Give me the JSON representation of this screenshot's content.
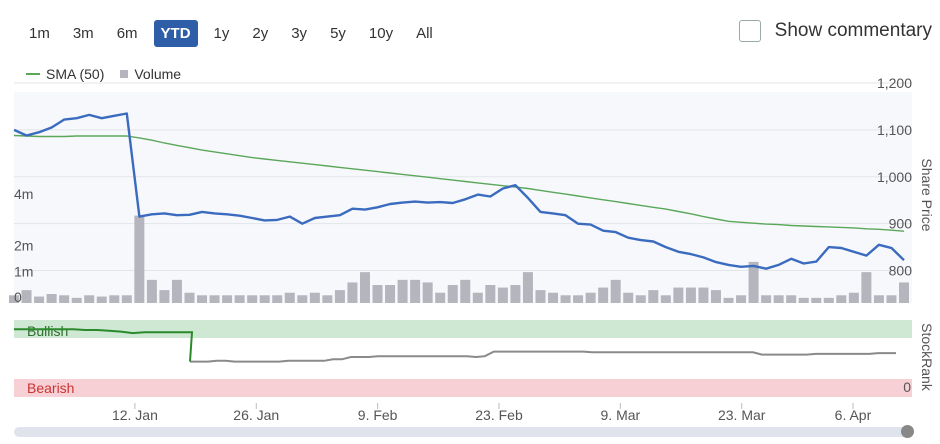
{
  "ranges": [
    "1m",
    "3m",
    "6m",
    "YTD",
    "1y",
    "2y",
    "3y",
    "5y",
    "10y",
    "All"
  ],
  "active_range": "YTD",
  "commentary": {
    "label": "Show commentary",
    "checked": false
  },
  "legend": {
    "sma": "SMA (50)",
    "volume": "Volume"
  },
  "colors": {
    "price": "#3b6bbf",
    "sma": "#5aa75a",
    "volume": "#b5b5bd",
    "active": "#2e5ea8",
    "bullish": "#2a8a2a",
    "stockrank": "#8a8a8a",
    "bullish_band": "#cfe8d4",
    "bearish_band": "#f6d0d4"
  },
  "chart_data": {
    "type": "line",
    "x_ticks": [
      "12. Jan",
      "26. Jan",
      "9. Feb",
      "23. Feb",
      "9. Mar",
      "23. Mar",
      "6. Apr"
    ],
    "y_right_ticks": [
      "1,200",
      "1,100",
      "1,000",
      "900",
      "800"
    ],
    "y_left_ticks": [
      "4m",
      "2m",
      "1m",
      "0"
    ],
    "y_right_label": "Share Price",
    "ylim_price": [
      750,
      1200
    ],
    "price": {
      "name": "Share Price",
      "values": [
        1100,
        1088,
        1095,
        1105,
        1122,
        1125,
        1132,
        1125,
        1130,
        1135,
        915,
        920,
        922,
        918,
        919,
        925,
        922,
        920,
        917,
        912,
        907,
        908,
        915,
        900,
        912,
        915,
        918,
        932,
        930,
        935,
        942,
        945,
        947,
        945,
        946,
        944,
        952,
        962,
        958,
        975,
        982,
        955,
        925,
        922,
        918,
        900,
        898,
        885,
        882,
        870,
        865,
        862,
        850,
        840,
        835,
        828,
        818,
        812,
        808,
        810,
        804,
        812,
        825,
        815,
        819,
        850,
        848,
        840,
        832,
        855,
        848,
        822
      ]
    },
    "sma": {
      "name": "SMA (50)",
      "values": [
        1088,
        1087,
        1086,
        1086,
        1086,
        1087,
        1087,
        1087,
        1087,
        1087,
        1083,
        1078,
        1072,
        1067,
        1062,
        1057,
        1053,
        1049,
        1045,
        1041,
        1038,
        1035,
        1032,
        1029,
        1026,
        1023,
        1020,
        1017,
        1014,
        1011,
        1008,
        1005,
        1002,
        999,
        996,
        993,
        990,
        987,
        984,
        981,
        978,
        975,
        971,
        967,
        963,
        959,
        955,
        951,
        947,
        943,
        939,
        935,
        931,
        926,
        921,
        915,
        910,
        905,
        903,
        901,
        899,
        898,
        896,
        895,
        894,
        893,
        892,
        891,
        889,
        888,
        886,
        884
      ]
    },
    "volume": {
      "name": "Volume",
      "values": [
        0.3,
        0.5,
        0.25,
        0.35,
        0.3,
        0.2,
        0.3,
        0.25,
        0.3,
        0.3,
        3.4,
        0.9,
        0.5,
        0.9,
        0.4,
        0.3,
        0.3,
        0.3,
        0.3,
        0.3,
        0.3,
        0.3,
        0.4,
        0.3,
        0.4,
        0.3,
        0.5,
        0.8,
        1.2,
        0.7,
        0.7,
        0.9,
        0.9,
        0.8,
        0.4,
        0.7,
        0.9,
        0.4,
        0.7,
        0.6,
        0.7,
        1.2,
        0.5,
        0.4,
        0.3,
        0.3,
        0.4,
        0.6,
        0.9,
        0.4,
        0.3,
        0.5,
        0.3,
        0.6,
        0.6,
        0.6,
        0.5,
        0.2,
        0.3,
        1.6,
        0.3,
        0.3,
        0.3,
        0.2,
        0.2,
        0.2,
        0.3,
        0.4,
        1.2,
        0.3,
        0.3,
        0.8
      ]
    },
    "volume_ylim": [
      0,
      4.2
    ],
    "stockrank": {
      "top_label": "Bullish",
      "bottom_label": "Bearish",
      "right_label": "StockRank",
      "right_tick": "0",
      "bullish": [
        88,
        88,
        88,
        88,
        88,
        88,
        87,
        87,
        86,
        85,
        83,
        84,
        84,
        84,
        84,
        84
      ],
      "rank": [
        46,
        46,
        46,
        47,
        47,
        46,
        46,
        46,
        46,
        46,
        46,
        47,
        47,
        47,
        47,
        47,
        49,
        49,
        52,
        52,
        52,
        53,
        53,
        53,
        53,
        53,
        53,
        53,
        53,
        53,
        53,
        53,
        52,
        53,
        59,
        59,
        59,
        59,
        59,
        59,
        59,
        59,
        59,
        59,
        59,
        58,
        58,
        58,
        58,
        58,
        58,
        58,
        58,
        58,
        58,
        58,
        58,
        58,
        58,
        58,
        58,
        58,
        58,
        58,
        55,
        55,
        55,
        55,
        55,
        55,
        56,
        56,
        56,
        56,
        56,
        56,
        56,
        57,
        57,
        57
      ]
    }
  }
}
